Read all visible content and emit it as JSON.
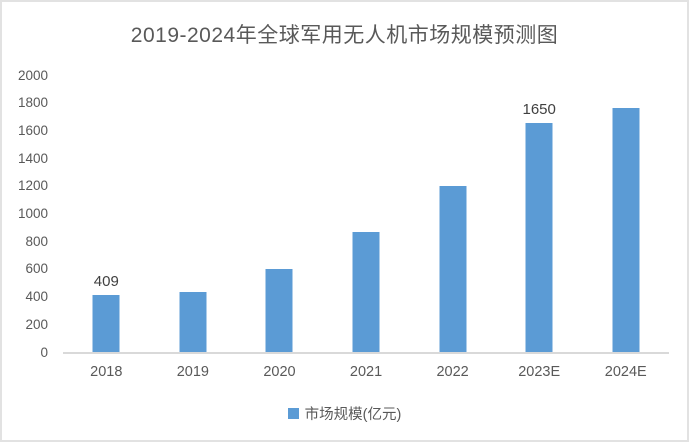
{
  "chart_data": {
    "type": "bar",
    "title": "2019-2024年全球军用无人机市场规模预测图",
    "categories": [
      "2018",
      "2019",
      "2020",
      "2021",
      "2022",
      "2023E",
      "2024E"
    ],
    "values": [
      409,
      435,
      600,
      870,
      1200,
      1650,
      1765
    ],
    "point_labels": [
      "409",
      "",
      "",
      "",
      "",
      "1650",
      ""
    ],
    "y_ticks": [
      0,
      200,
      400,
      600,
      800,
      1000,
      1200,
      1400,
      1600,
      1800,
      2000
    ],
    "ylim": [
      0,
      2000
    ],
    "xlabel": "",
    "ylabel": "",
    "grid": false,
    "legend_position": "bottom",
    "legend": "市场规模(亿元)",
    "colors": {
      "bar": "#5B9BD5",
      "axis_line": "#D9D9D9",
      "axis_text": "#595959",
      "value_label": "#404040",
      "title_text": "#595959",
      "frame_border": "#E2E2E2"
    }
  }
}
